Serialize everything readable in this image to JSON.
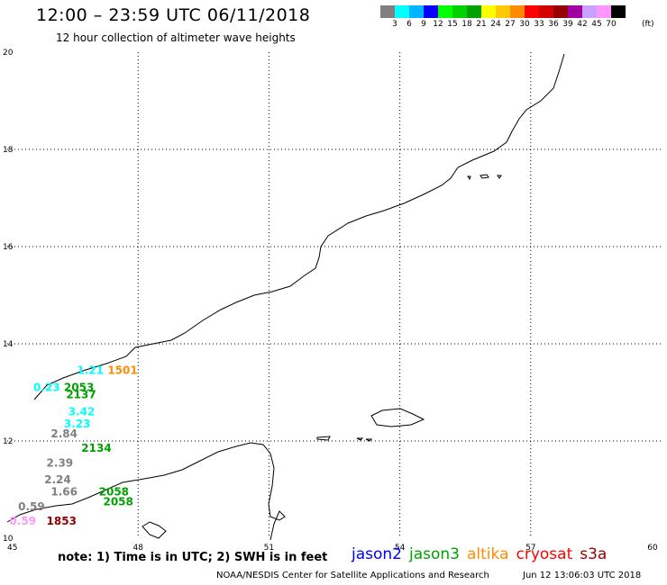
{
  "header": {
    "title": "12:00 – 23:59 UTC 06/11/2018",
    "subtitle": "12 hour collection of altimeter wave heights"
  },
  "legend": {
    "colors": [
      "#808080",
      "#00ffff",
      "#00b4ff",
      "#0000ff",
      "#00ff00",
      "#00d200",
      "#00a000",
      "#ffff00",
      "#ffc800",
      "#ff8c00",
      "#ff0000",
      "#d20000",
      "#960000",
      "#a000a0",
      "#c8a0ff",
      "#ff96ff",
      "#000000"
    ],
    "labels": [
      "3",
      "6",
      "9",
      "12",
      "15",
      "18",
      "21",
      "24",
      "27",
      "30",
      "33",
      "36",
      "39",
      "42",
      "45",
      "70"
    ],
    "unit": "(ft)"
  },
  "map": {
    "lon_ticks": [
      "45",
      "48",
      "51",
      "54",
      "57",
      "60"
    ],
    "lat_ticks": [
      "20",
      "18",
      "16",
      "14",
      "12",
      "10"
    ],
    "observations": [
      {
        "text": "1.21",
        "lon": 46.6,
        "lat": 13.45,
        "color": "#00ffff"
      },
      {
        "text": "1501",
        "lon": 47.3,
        "lat": 13.45,
        "color": "#ff8c00"
      },
      {
        "text": "0.23",
        "lon": 45.6,
        "lat": 13.1,
        "color": "#00ffff"
      },
      {
        "text": "2053",
        "lon": 46.3,
        "lat": 13.1,
        "color": "#00a000"
      },
      {
        "text": "2137",
        "lon": 46.35,
        "lat": 12.95,
        "color": "#00a000"
      },
      {
        "text": "3.42",
        "lon": 46.4,
        "lat": 12.6,
        "color": "#00ffff"
      },
      {
        "text": "3.23",
        "lon": 46.3,
        "lat": 12.35,
        "color": "#00ffff"
      },
      {
        "text": "2.84",
        "lon": 46.0,
        "lat": 12.15,
        "color": "#808080"
      },
      {
        "text": "2134",
        "lon": 46.7,
        "lat": 11.85,
        "color": "#00a000"
      },
      {
        "text": "2.39",
        "lon": 45.9,
        "lat": 11.55,
        "color": "#808080"
      },
      {
        "text": "2.24",
        "lon": 45.85,
        "lat": 11.2,
        "color": "#808080"
      },
      {
        "text": "1.66",
        "lon": 46.0,
        "lat": 10.95,
        "color": "#808080"
      },
      {
        "text": "2058",
        "lon": 47.1,
        "lat": 10.95,
        "color": "#00a000"
      },
      {
        "text": "2058",
        "lon": 47.2,
        "lat": 10.75,
        "color": "#00a000"
      },
      {
        "text": "0.59",
        "lon": 45.25,
        "lat": 10.65,
        "color": "#808080"
      },
      {
        "text": "0.59",
        "lon": 45.05,
        "lat": 10.35,
        "color": "#ff96ff"
      },
      {
        "text": "1853",
        "lon": 45.9,
        "lat": 10.35,
        "color": "#960000"
      }
    ]
  },
  "footer": {
    "note": "note: 1) Time is in UTC; 2) SWH is in feet",
    "satellites": [
      {
        "name": "jason2",
        "color": "#0000ff"
      },
      {
        "name": "jason3",
        "color": "#00a000"
      },
      {
        "name": "altika",
        "color": "#ff8c00"
      },
      {
        "name": "cryosat",
        "color": "#ff0000"
      },
      {
        "name": "s3a",
        "color": "#960000"
      }
    ],
    "credit": "NOAA/NESDIS Center for Satellite Applications and Research",
    "timestamp": "Jun 12 13:06:03 UTC 2018"
  }
}
